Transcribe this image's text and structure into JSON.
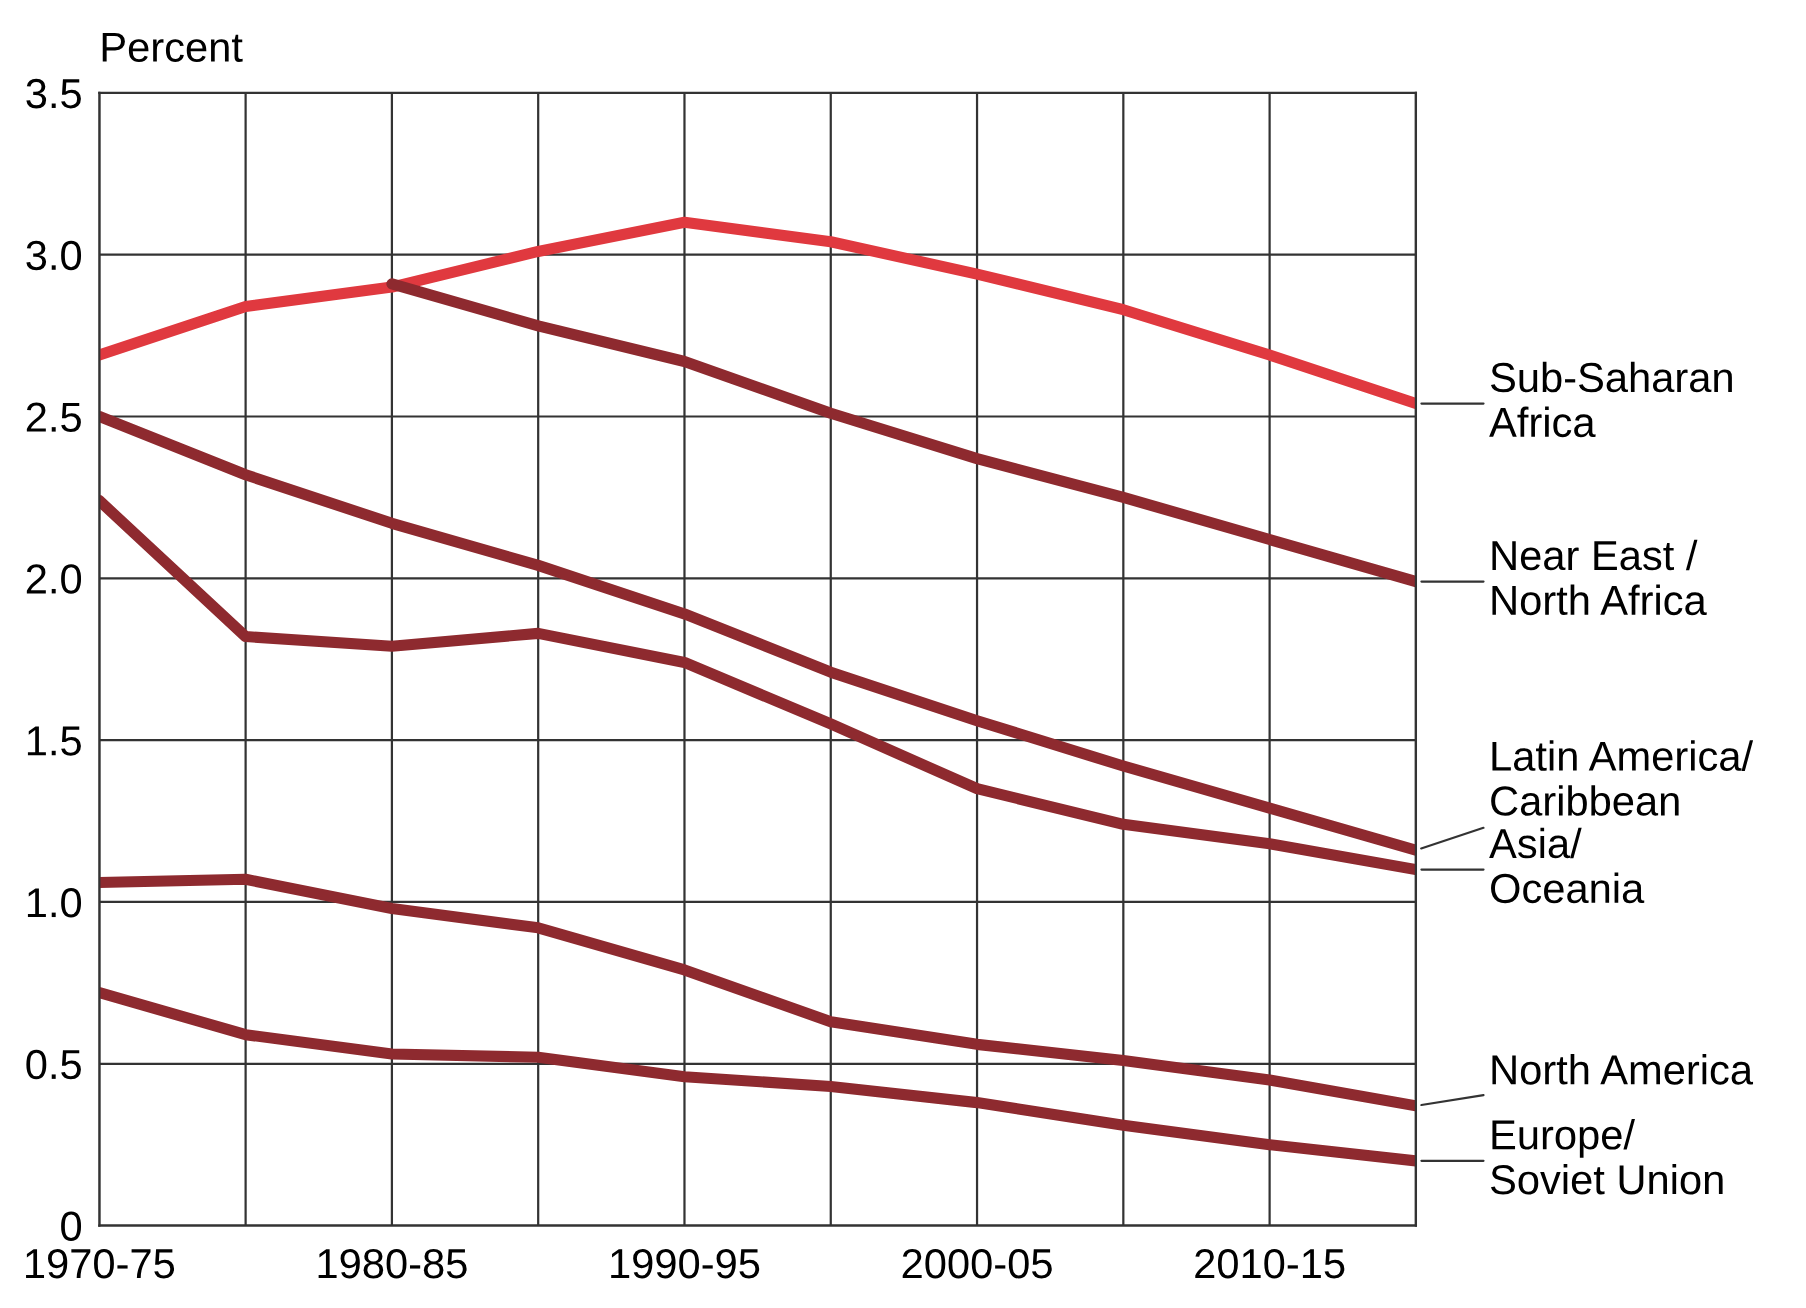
{
  "chart_data": {
    "type": "line",
    "ylabel": "Percent",
    "categories": [
      "1970-75",
      null,
      "1980-85",
      null,
      "1990-95",
      null,
      "2000-05",
      null,
      "2010-15",
      null
    ],
    "series": [
      {
        "name": "Sub-Saharan\nAfrica",
        "color": "#e0393f",
        "values": [
          2.69,
          2.84,
          2.9,
          3.01,
          3.1,
          3.04,
          2.94,
          2.83,
          2.69,
          2.54
        ]
      },
      {
        "name": "Near East /\nNorth Africa",
        "color": "#8e2a2f",
        "values": [
          null,
          null,
          2.91,
          2.78,
          2.67,
          2.51,
          2.37,
          2.25,
          2.12,
          1.99
        ]
      },
      {
        "name": "Latin America/\nCaribbean",
        "color": "#8e2a2f",
        "values": [
          2.5,
          2.32,
          2.17,
          2.04,
          1.89,
          1.71,
          1.56,
          1.42,
          1.29,
          1.16
        ]
      },
      {
        "name": "Asia/\nOceania",
        "color": "#8e2a2f",
        "values": [
          2.24,
          1.82,
          1.79,
          1.83,
          1.74,
          1.55,
          1.35,
          1.24,
          1.18,
          1.1
        ]
      },
      {
        "name": "North America",
        "color": "#8e2a2f",
        "values": [
          1.06,
          1.07,
          0.98,
          0.92,
          0.79,
          0.63,
          0.56,
          0.51,
          0.45,
          0.37
        ]
      },
      {
        "name": "Europe/\nSoviet Union",
        "color": "#8e2a2f",
        "values": [
          0.72,
          0.59,
          0.53,
          0.52,
          0.46,
          0.43,
          0.38,
          0.31,
          0.25,
          0.2
        ]
      }
    ],
    "ylim": [
      0,
      3.5
    ],
    "yticks": [
      0,
      0.5,
      {
        "value": 1.0,
        "label": "1.0"
      },
      1.5,
      {
        "value": 2.0,
        "label": "2.0"
      },
      2.5,
      {
        "value": 3.0,
        "label": "3.0"
      },
      3.5
    ],
    "grid": true,
    "legend": false,
    "marker": "none",
    "line_style": "solid"
  }
}
